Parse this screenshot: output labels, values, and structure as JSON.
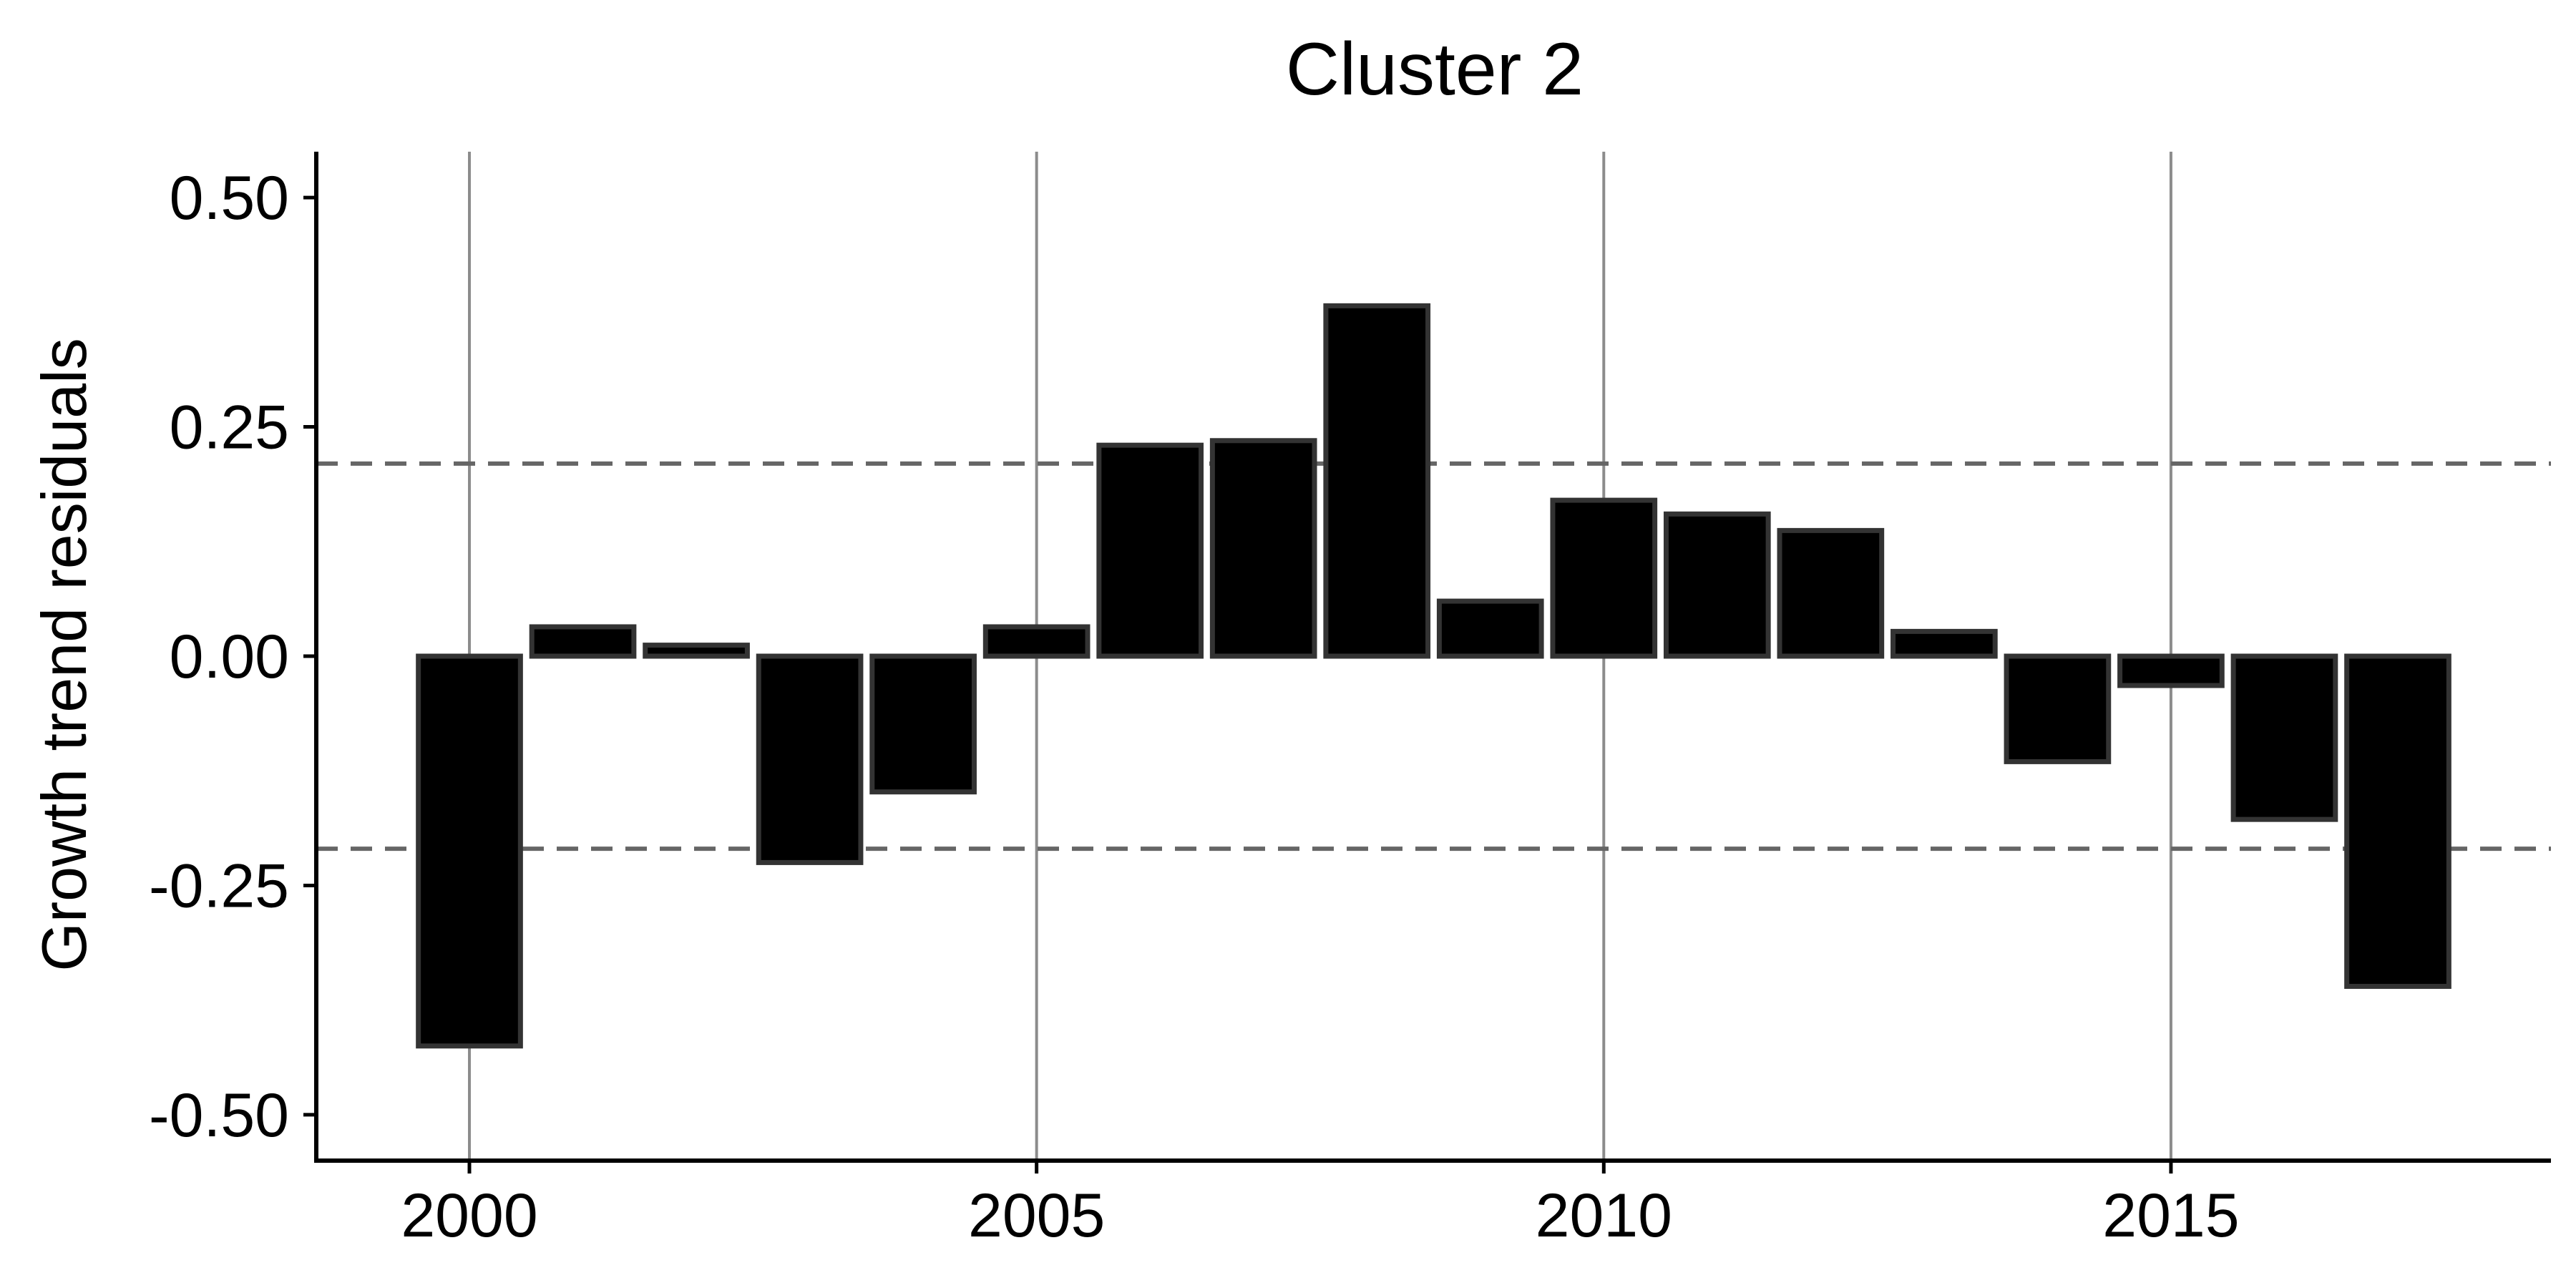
{
  "chart_data": {
    "type": "bar",
    "title": "Cluster 2",
    "xlabel": "",
    "ylabel": "Growth trend residuals",
    "x": [
      2000,
      2001,
      2002,
      2003,
      2004,
      2005,
      2006,
      2007,
      2008,
      2009,
      2010,
      2011,
      2012,
      2013,
      2014,
      2015,
      2016,
      2017
    ],
    "values": [
      -0.425,
      0.032,
      0.012,
      -0.225,
      -0.148,
      0.032,
      0.23,
      0.235,
      0.382,
      0.06,
      0.17,
      0.155,
      0.137,
      0.027,
      -0.115,
      -0.032,
      -0.178,
      -0.36
    ],
    "xlim": [
      1998.65,
      2018.35
    ],
    "ylim": [
      -0.55,
      0.55
    ],
    "xticks": [
      2000,
      2005,
      2010,
      2015
    ],
    "xtick_labels": [
      "2000",
      "2005",
      "2010",
      "2015"
    ],
    "yticks": [
      0.5,
      0.25,
      0,
      -0.25,
      -0.5
    ],
    "ytick_labels": [
      "0.50",
      "0.25",
      "0.00",
      "-0.25",
      "-0.50"
    ],
    "reference_lines": [
      0.21,
      -0.21
    ],
    "colors": {
      "bar_fill": "#000000",
      "bar_stroke": "#333333",
      "reference_line": "#666666",
      "grid": "#8c8c8c"
    },
    "grid": "vertical at major x ticks",
    "legend": "none"
  }
}
